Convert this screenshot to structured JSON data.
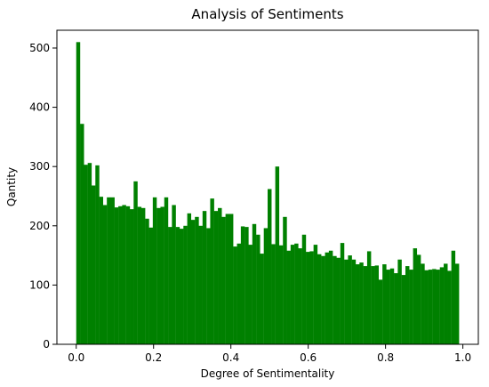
{
  "chart_data": {
    "type": "bar",
    "title": "Analysis of Sentiments",
    "xlabel": "Degree of Sentimentality",
    "ylabel": "Qantity",
    "xlim": [
      -0.05,
      1.04
    ],
    "ylim": [
      0,
      530
    ],
    "xticks": [
      0.0,
      0.2,
      0.4,
      0.6,
      0.8,
      1.0
    ],
    "xtick_labels": [
      "0.0",
      "0.2",
      "0.4",
      "0.6",
      "0.8",
      "1.0"
    ],
    "yticks": [
      0,
      100,
      200,
      300,
      400,
      500
    ],
    "ytick_labels": [
      "0",
      "100",
      "200",
      "300",
      "400",
      "500"
    ],
    "grid": false,
    "legend": "none",
    "bar_color": "#008000",
    "bins": {
      "start": 0.0,
      "width": 0.0099,
      "count": 100
    },
    "values": [
      510,
      372,
      303,
      306,
      268,
      302,
      249,
      235,
      248,
      248,
      231,
      233,
      235,
      233,
      228,
      275,
      232,
      230,
      212,
      197,
      248,
      230,
      232,
      248,
      198,
      235,
      198,
      195,
      200,
      221,
      210,
      215,
      200,
      225,
      196,
      246,
      225,
      230,
      215,
      220,
      220,
      165,
      170,
      199,
      198,
      168,
      203,
      185,
      153,
      196,
      262,
      169,
      300,
      167,
      215,
      158,
      168,
      170,
      162,
      185,
      156,
      157,
      168,
      152,
      149,
      155,
      158,
      149,
      146,
      171,
      143,
      150,
      143,
      135,
      138,
      132,
      157,
      132,
      133,
      109,
      135,
      126,
      128,
      120,
      143,
      117,
      132,
      126,
      162,
      151,
      136,
      125,
      126,
      127,
      126,
      130,
      136,
      124,
      158,
      136
    ]
  }
}
